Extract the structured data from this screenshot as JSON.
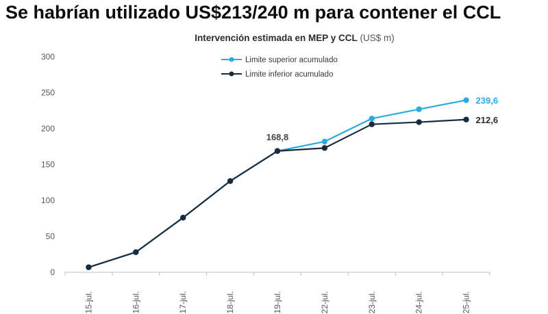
{
  "headline": "Se habrían utilizado US$213/240 m para contener el CCL",
  "chart_data": {
    "type": "line",
    "title": "Intervención estimada en MEP y CCL",
    "title_unit": "(US$ m)",
    "categories": [
      "15-jul.",
      "16-jul.",
      "17-jul.",
      "18-jul.",
      "19-jul.",
      "22-jul.",
      "23-jul.",
      "24-jul.",
      "25-jul."
    ],
    "ylim": [
      0,
      300
    ],
    "yticks": [
      0,
      50,
      100,
      150,
      200,
      250,
      300
    ],
    "grid": false,
    "legend_position": "top-center",
    "series": [
      {
        "name": "Limite superior acumulado",
        "color": "#29abe2",
        "values": [
          7,
          28,
          76,
          127,
          168.8,
          182,
          214,
          227,
          239.6
        ]
      },
      {
        "name": "Limite inferior acumulado",
        "color": "#1a2b3c",
        "values": [
          7,
          28,
          76,
          127,
          168.8,
          173,
          206,
          209,
          212.6
        ]
      }
    ],
    "annotations": [
      {
        "text": "168,8",
        "category": "19-jul.",
        "series": "Limite inferior acumulado"
      },
      {
        "text": "239,6",
        "category": "25-jul.",
        "series": "Limite superior acumulado"
      },
      {
        "text": "212,6",
        "category": "25-jul.",
        "series": "Limite inferior acumulado"
      }
    ]
  }
}
